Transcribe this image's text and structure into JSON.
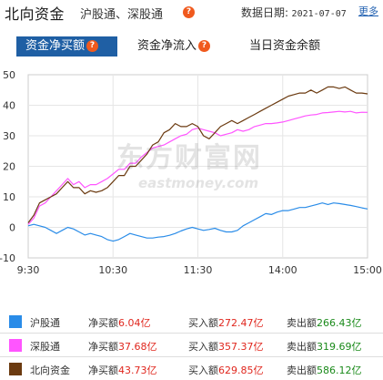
{
  "header": {
    "title": "北向资金",
    "subtitle": "沪股通、深股通",
    "date_label": "数据日期:",
    "date_value": "2021-07-07",
    "more_link": "更多"
  },
  "tabs": [
    {
      "label": "资金净买额",
      "active": true
    },
    {
      "label": "资金净流入",
      "active": false
    },
    {
      "label": "当日资金余额",
      "active": false
    }
  ],
  "watermark": {
    "cn": "东方财富网",
    "en": "eastmoney.com"
  },
  "chart_data": {
    "type": "line",
    "x_ticks": [
      "9:30",
      "10:30",
      "11:30",
      "14:00",
      "15:00"
    ],
    "ylim": [
      -10,
      50
    ],
    "y_ticks": [
      "50",
      "40",
      "30",
      "20",
      "10",
      "0",
      "-10"
    ],
    "grid": true,
    "x_time": [
      0,
      4,
      8,
      12,
      16,
      20,
      24,
      28,
      32,
      36,
      40,
      44,
      48,
      52,
      56,
      60,
      64,
      68,
      72,
      76,
      80,
      84,
      88,
      92,
      96,
      100,
      104,
      108,
      112,
      116,
      120,
      124,
      128,
      132,
      136,
      140,
      144,
      148,
      152,
      156,
      160,
      164,
      168,
      172,
      176,
      180,
      184,
      188,
      192,
      196,
      200,
      204,
      208,
      212,
      216,
      220,
      224,
      228,
      232,
      236,
      240
    ],
    "series": [
      {
        "name": "沪股通",
        "color": "#2a8ce8",
        "values": [
          0.5,
          1,
          0.5,
          0,
          -1,
          -2,
          -1,
          0,
          -0.5,
          -1.5,
          -2.5,
          -2,
          -2.5,
          -3,
          -4,
          -4.5,
          -4,
          -3,
          -2,
          -2.5,
          -3,
          -3.5,
          -3.5,
          -3.2,
          -3,
          -2.6,
          -2,
          -1.2,
          -0.5,
          0,
          -0.5,
          -1,
          -0.7,
          -0.3,
          -1,
          -1.5,
          -1.5,
          -1,
          0.5,
          1.5,
          2.5,
          3.5,
          4.5,
          4.2,
          5,
          5.5,
          5.5,
          6,
          6.5,
          6.5,
          7,
          7.5,
          8,
          7.5,
          8,
          7.8,
          7.5,
          7.2,
          6.8,
          6.4,
          6.04
        ]
      },
      {
        "name": "深股通",
        "color": "#ff55ff",
        "values": [
          1,
          3,
          7,
          8,
          10,
          12,
          14,
          16,
          14,
          15,
          13,
          14,
          14,
          15,
          16,
          17.5,
          19,
          19,
          21,
          21,
          23,
          24.5,
          26,
          26.5,
          27,
          28,
          29,
          30,
          30.5,
          32,
          32.5,
          32,
          31.5,
          31,
          30,
          30.5,
          31,
          32,
          31.5,
          32,
          33,
          33.5,
          34,
          34,
          34.2,
          34.5,
          35,
          35.5,
          36,
          36.5,
          36.8,
          37,
          37.5,
          37.6,
          37.8,
          38,
          37.8,
          38,
          37.5,
          37.7,
          37.68
        ]
      },
      {
        "name": "北向资金",
        "color": "#6b3a10",
        "values": [
          1.5,
          4,
          8,
          9,
          10,
          11,
          13,
          15,
          13,
          13,
          11,
          12,
          11.5,
          12,
          13,
          15,
          17,
          17,
          20,
          20,
          22,
          24,
          27,
          28,
          31,
          32,
          34,
          33,
          33,
          34,
          33,
          30,
          29,
          31,
          33,
          34,
          35,
          34,
          35,
          36,
          37,
          38,
          39,
          40,
          41,
          42,
          43,
          43.5,
          44,
          44,
          45,
          44,
          45,
          46,
          46,
          45.5,
          46,
          45,
          44,
          44,
          43.73
        ]
      }
    ]
  },
  "legend": [
    {
      "name": "沪股通",
      "swatch": "#2a8ce8",
      "net_label": "净买额",
      "net_value": "6.04亿",
      "buy_label": "买入额",
      "buy_value": "272.47亿",
      "sell_label": "卖出额",
      "sell_value": "266.43亿"
    },
    {
      "name": "深股通",
      "swatch": "#ff55ff",
      "net_label": "净买额",
      "net_value": "37.68亿",
      "buy_label": "买入额",
      "buy_value": "357.37亿",
      "sell_label": "卖出额",
      "sell_value": "319.69亿"
    },
    {
      "name": "北向资金",
      "swatch": "#6b3a10",
      "net_label": "净买额",
      "net_value": "43.73亿",
      "buy_label": "买入额",
      "buy_value": "629.85亿",
      "sell_label": "卖出额",
      "sell_value": "586.12亿"
    }
  ]
}
